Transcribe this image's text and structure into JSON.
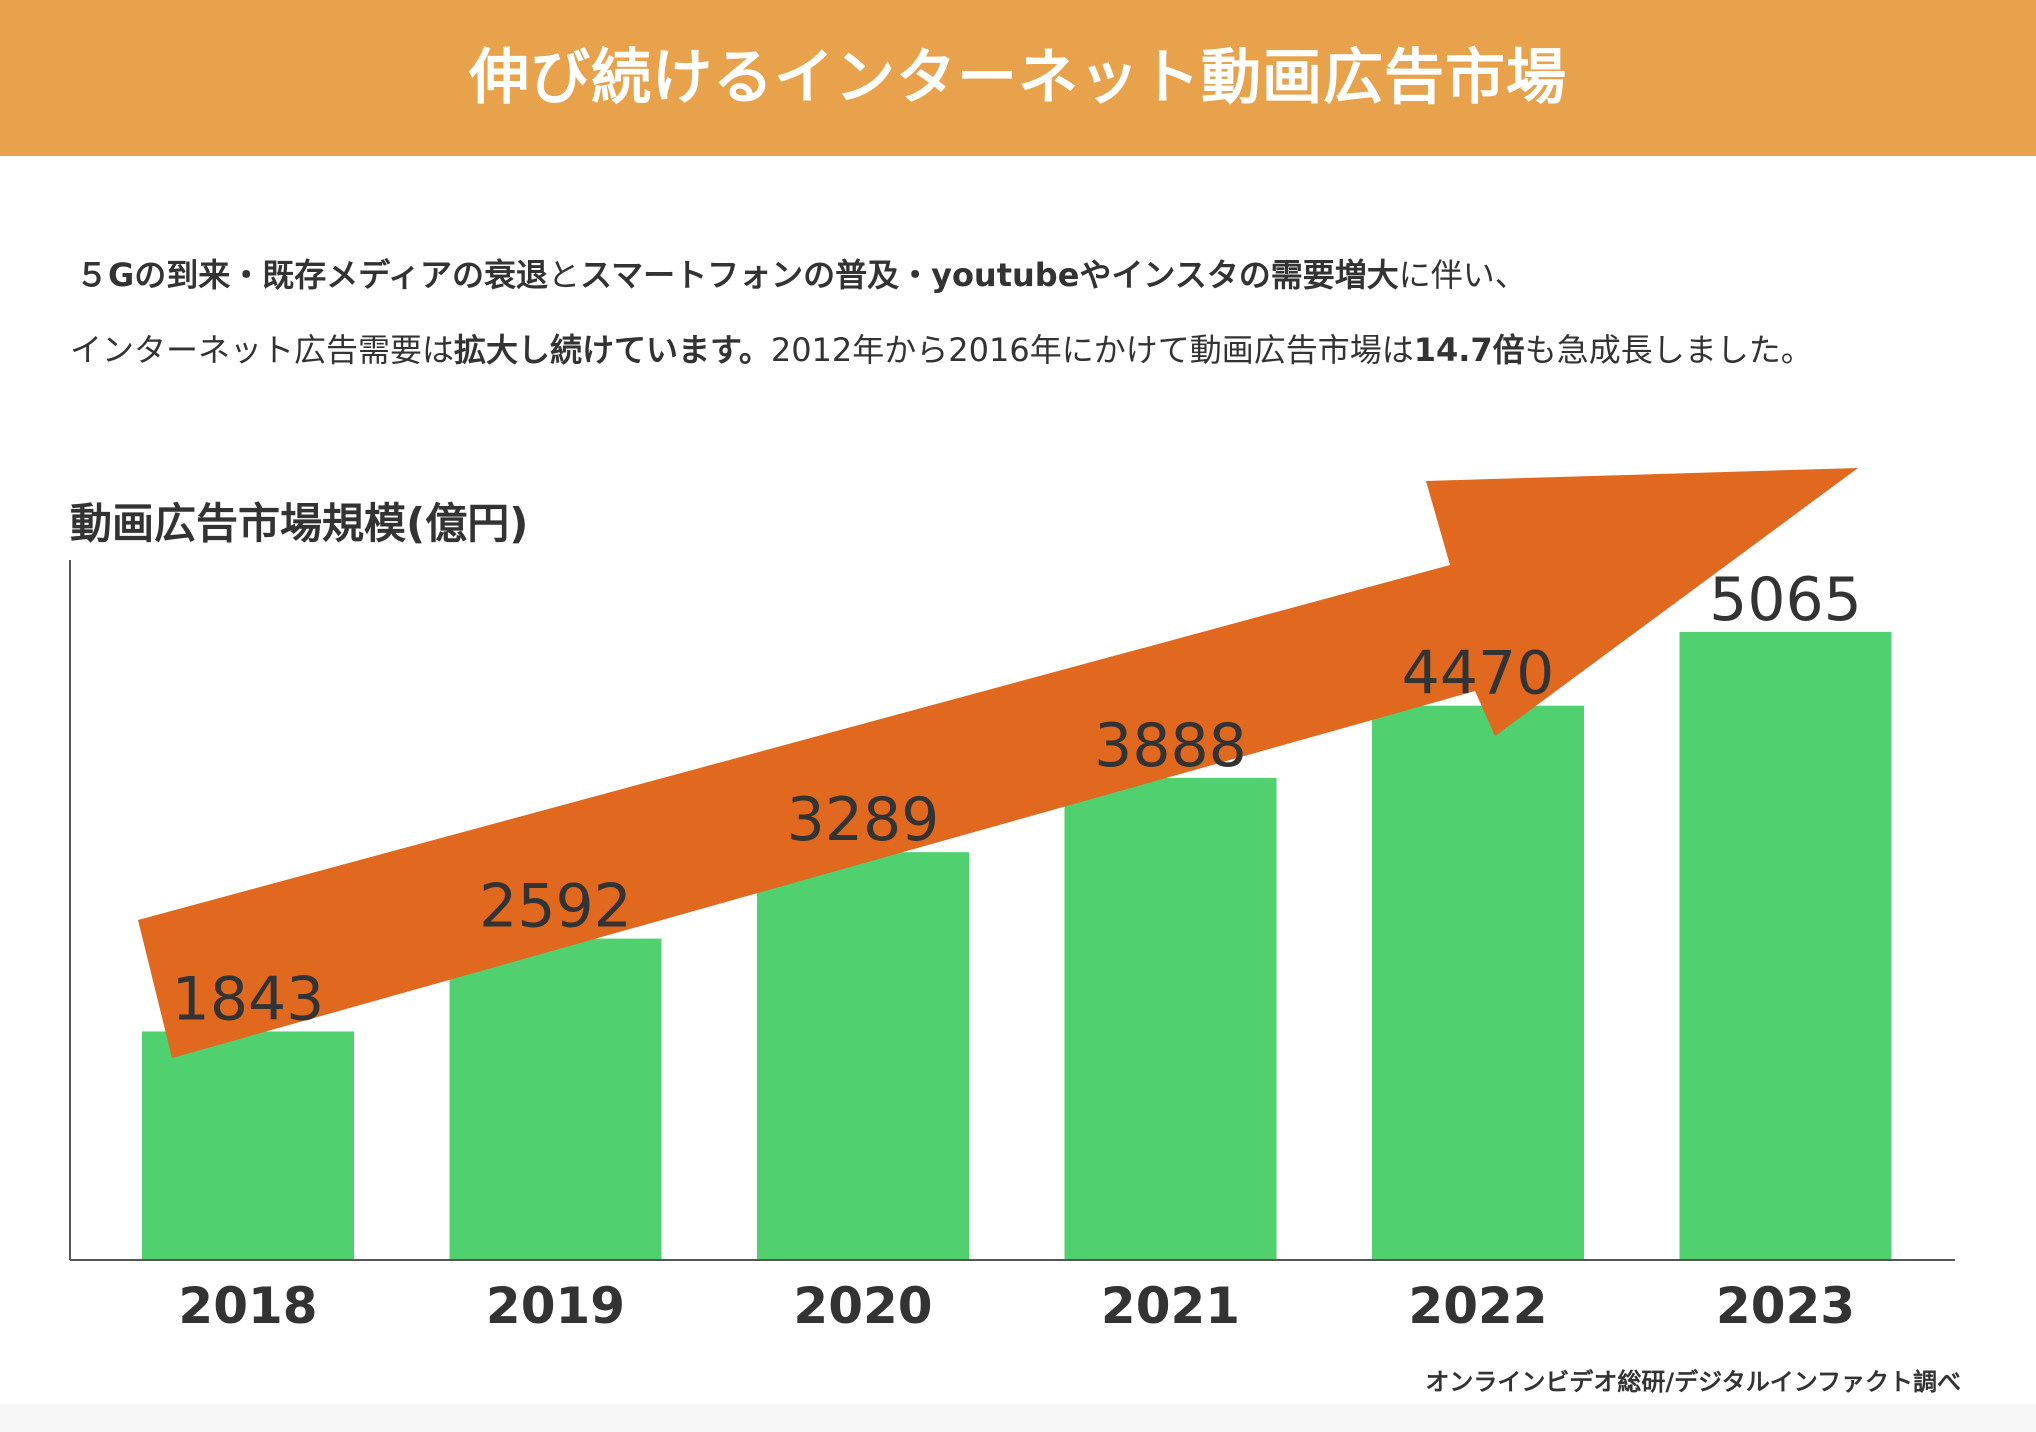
{
  "header": {
    "title": "伸び続けるインターネット動画広告市場"
  },
  "description": {
    "line1": [
      {
        "text": "５Gの到来・既存メディアの衰退",
        "bold": true
      },
      {
        "text": "と",
        "bold": false
      },
      {
        "text": "スマートフォンの普及・youtubeやインスタの需要増大",
        "bold": true
      },
      {
        "text": "に伴い、",
        "bold": false
      }
    ],
    "line2": [
      {
        "text": "インターネット広告需要は",
        "bold": false
      },
      {
        "text": "拡大し続けています。",
        "bold": true
      },
      {
        "text": "2012年から2016年にかけて動画広告市場は",
        "bold": false
      },
      {
        "text": "14.7倍",
        "bold": true
      },
      {
        "text": "も急成長しました。",
        "bold": false
      }
    ]
  },
  "source": "オンラインビデオ総研/デジタルインファクト調べ",
  "colors": {
    "header": "#E8A24B",
    "bar": "#50D06E",
    "arrow": "#E0681F",
    "text": "#333333"
  },
  "chart_data": {
    "type": "bar",
    "title": "動画広告市場規模(億円)",
    "categories": [
      "2018",
      "2019",
      "2020",
      "2021",
      "2022",
      "2023"
    ],
    "values": [
      1843,
      2592,
      3289,
      3888,
      4470,
      5065
    ],
    "data_labels": true,
    "ylim": [
      0,
      6000
    ],
    "grid": false,
    "legend": "none",
    "annotations": [
      "upward-trend-arrow"
    ]
  }
}
